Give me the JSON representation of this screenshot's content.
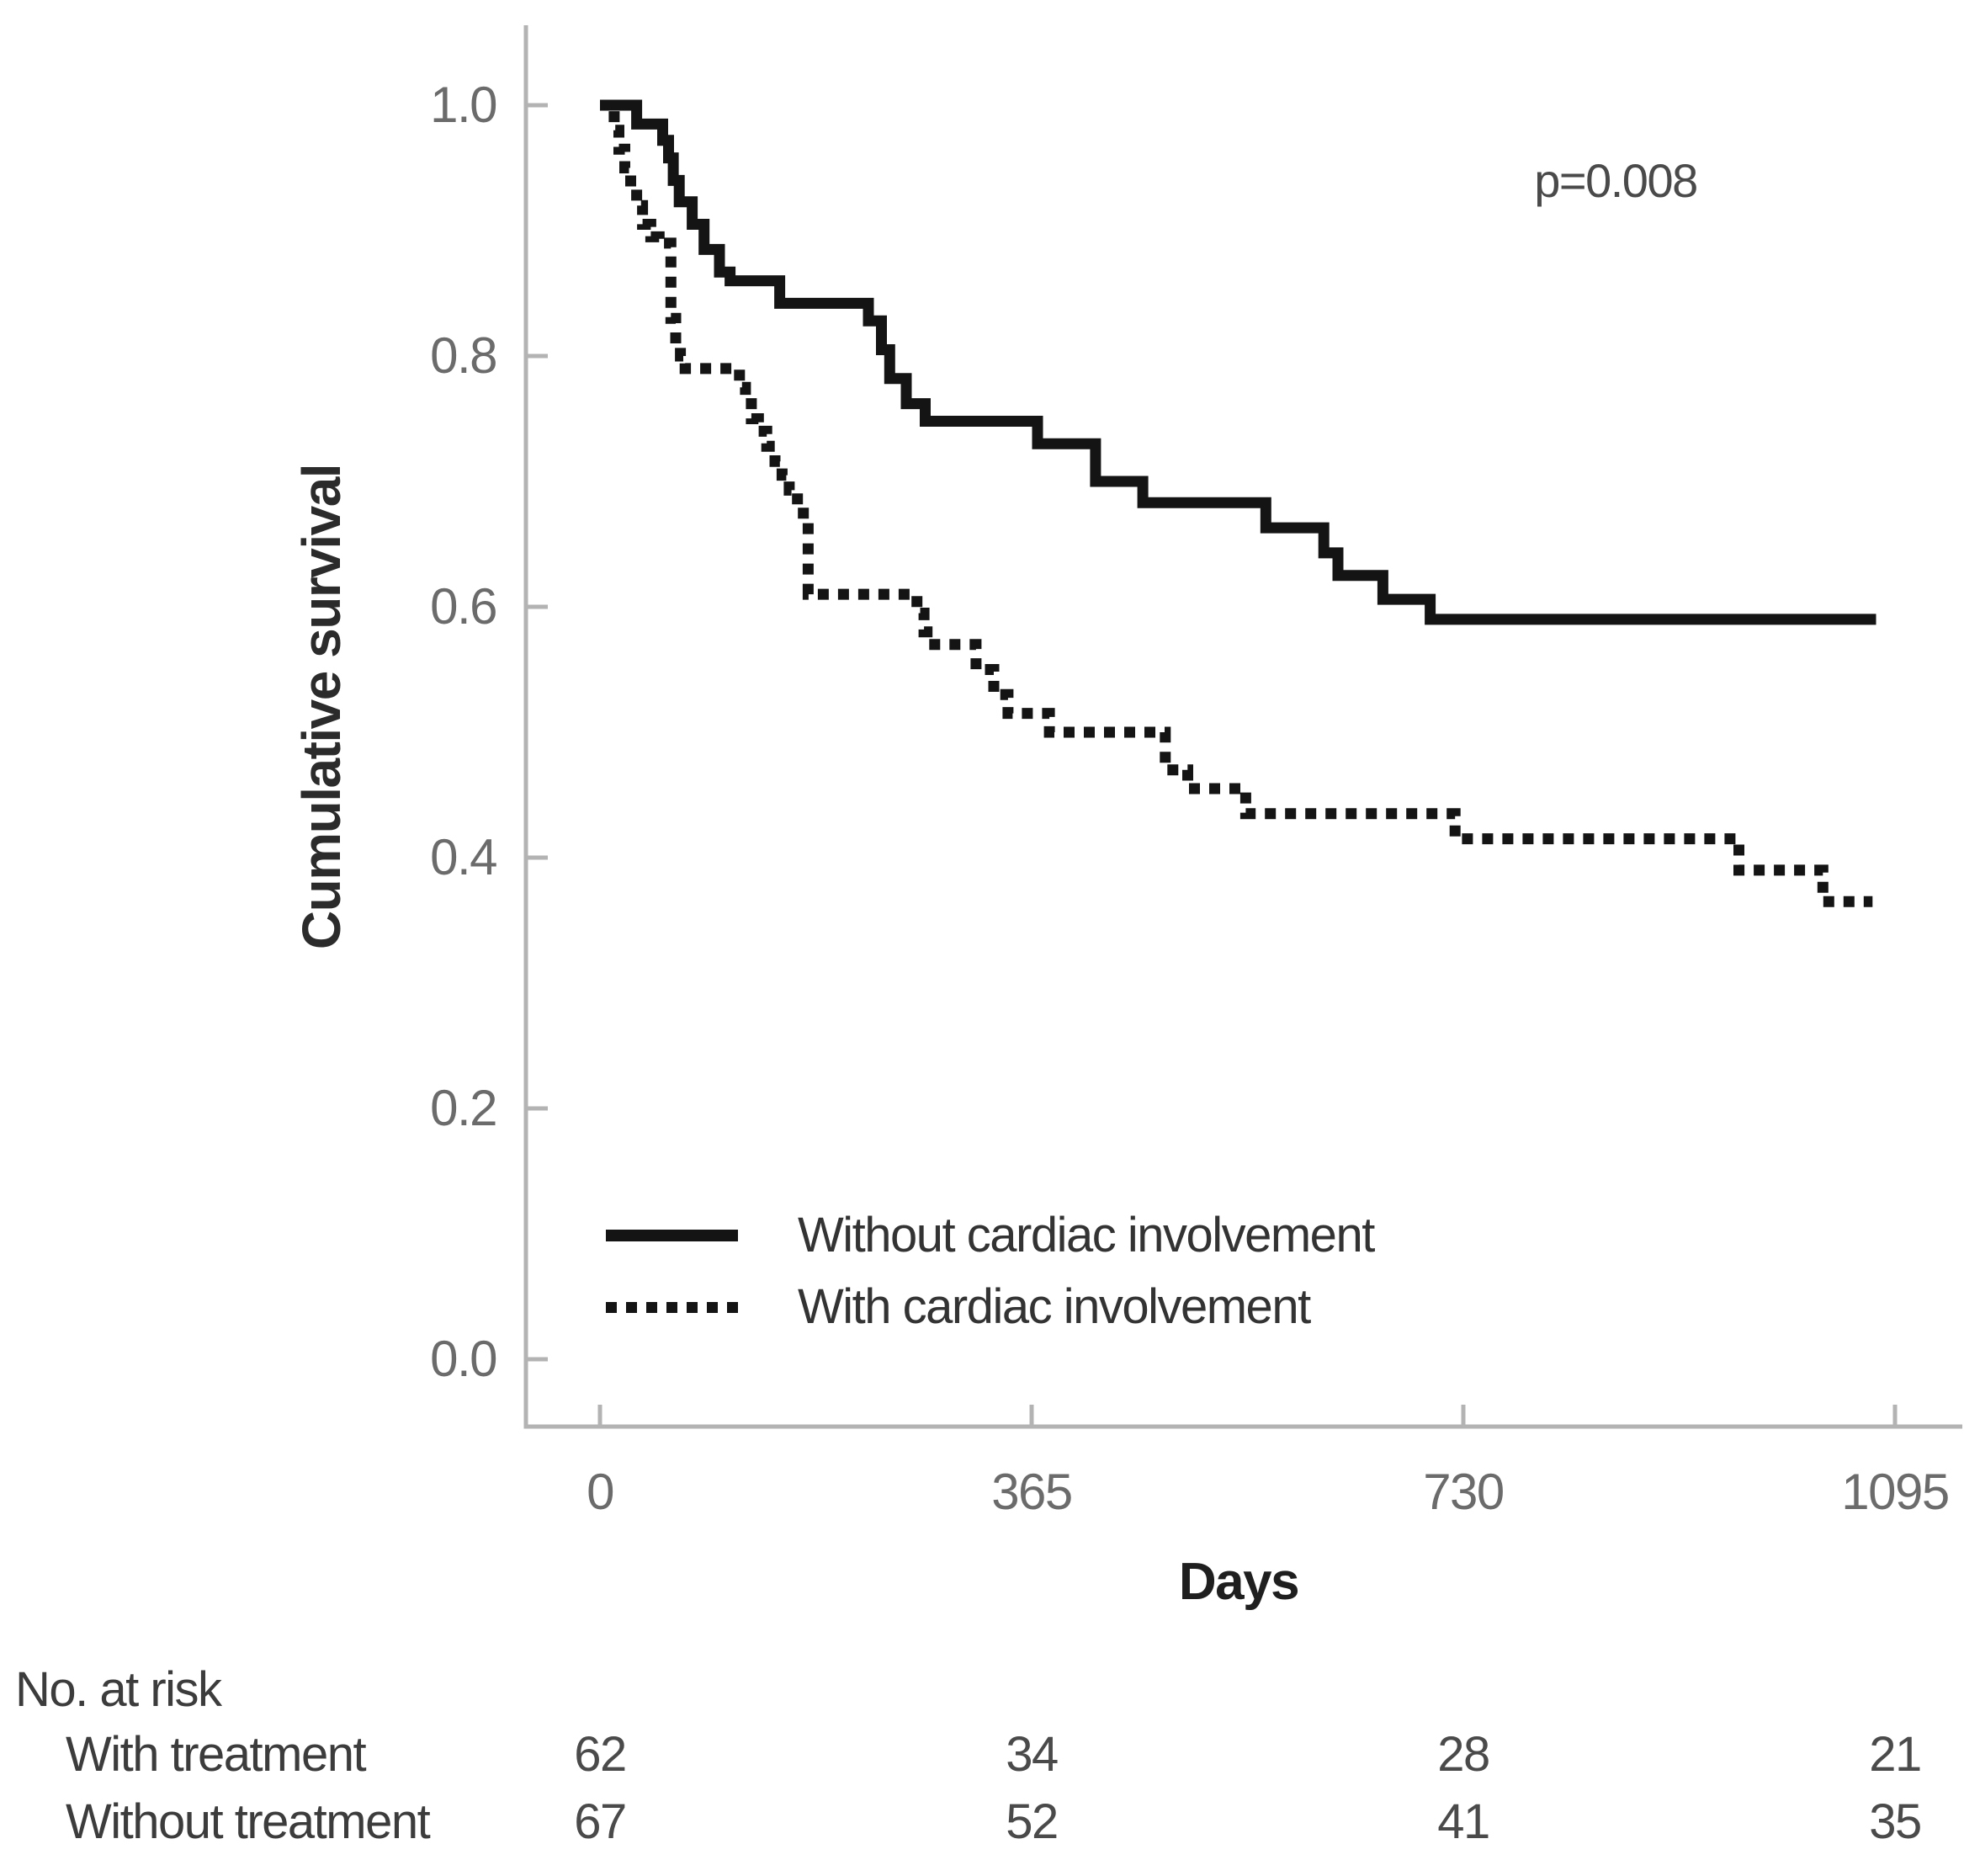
{
  "chart_data": {
    "type": "line",
    "subtype": "kaplan-meier-step",
    "title": "",
    "xlabel": "Days",
    "ylabel": "Cumulative survival",
    "annotation": "p=0.008",
    "x_ticks": [
      0,
      365,
      730,
      1095
    ],
    "y_tick_labels": [
      "1.0",
      "0.8",
      "0.6",
      "0.4",
      "0.2",
      "0.0"
    ],
    "xlim": [
      0,
      1150
    ],
    "ylim": [
      0.0,
      1.05
    ],
    "grid": false,
    "legend_position": "inside-bottom-left",
    "series": [
      {
        "name": "Without cardiac involvement",
        "line_style": "solid",
        "color": "#141414",
        "end_day": 1079,
        "steps": [
          [
            0,
            1.0
          ],
          [
            31,
            0.985
          ],
          [
            53,
            0.972
          ],
          [
            58,
            0.958
          ],
          [
            62,
            0.94
          ],
          [
            67,
            0.923
          ],
          [
            78,
            0.905
          ],
          [
            88,
            0.885
          ],
          [
            101,
            0.867
          ],
          [
            110,
            0.86
          ],
          [
            152,
            0.842
          ],
          [
            227,
            0.828
          ],
          [
            238,
            0.805
          ],
          [
            245,
            0.782
          ],
          [
            259,
            0.762
          ],
          [
            275,
            0.748
          ],
          [
            370,
            0.73
          ],
          [
            419,
            0.7
          ],
          [
            459,
            0.683
          ],
          [
            563,
            0.663
          ],
          [
            612,
            0.643
          ],
          [
            624,
            0.625
          ],
          [
            662,
            0.606
          ],
          [
            702,
            0.59
          ]
        ]
      },
      {
        "name": "With cardiac involvement",
        "line_style": "dashed",
        "color": "#141414",
        "end_day": 1076,
        "steps": [
          [
            0,
            1.0
          ],
          [
            12,
            0.98
          ],
          [
            16,
            0.965
          ],
          [
            21,
            0.95
          ],
          [
            26,
            0.935
          ],
          [
            31,
            0.92
          ],
          [
            36,
            0.905
          ],
          [
            43,
            0.895
          ],
          [
            50,
            0.89
          ],
          [
            60,
            0.83
          ],
          [
            64,
            0.81
          ],
          [
            68,
            0.8
          ],
          [
            72,
            0.79
          ],
          [
            118,
            0.775
          ],
          [
            123,
            0.762
          ],
          [
            128,
            0.75
          ],
          [
            134,
            0.74
          ],
          [
            141,
            0.728
          ],
          [
            148,
            0.716
          ],
          [
            154,
            0.705
          ],
          [
            160,
            0.693
          ],
          [
            167,
            0.68
          ],
          [
            172,
            0.668
          ],
          [
            176,
            0.61
          ],
          [
            268,
            0.595
          ],
          [
            274,
            0.58
          ],
          [
            283,
            0.57
          ],
          [
            318,
            0.55
          ],
          [
            333,
            0.53
          ],
          [
            345,
            0.515
          ],
          [
            380,
            0.5
          ],
          [
            478,
            0.47
          ],
          [
            497,
            0.455
          ],
          [
            546,
            0.435
          ],
          [
            723,
            0.415
          ],
          [
            963,
            0.39
          ],
          [
            1034,
            0.365
          ]
        ]
      }
    ]
  },
  "risk_table": {
    "title": "No. at risk",
    "rows": [
      {
        "label": "With treatment",
        "values": [
          "62",
          "34",
          "28",
          "21"
        ]
      },
      {
        "label": "Without treatment",
        "values": [
          "67",
          "52",
          "41",
          "35"
        ]
      }
    ]
  },
  "colors": {
    "curve": "#141414",
    "axis": "#b3b3b3",
    "tick_label": "#6b6b6b",
    "text": "#3c3c3c"
  }
}
